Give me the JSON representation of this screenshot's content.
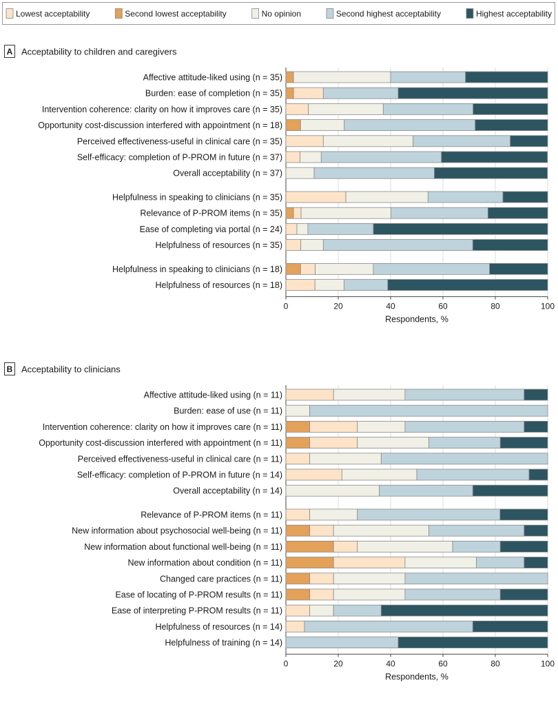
{
  "colors": {
    "lowest": "#fde3c8",
    "second_lowest": "#e3a15a",
    "no_opinion": "#f0f0e6",
    "second_highest": "#bed3dc",
    "highest": "#2d5461"
  },
  "legend": {
    "placement": "top",
    "items": [
      {
        "key": "lowest",
        "label": "Lowest acceptability"
      },
      {
        "key": "second_lowest",
        "label": "Second lowest acceptability"
      },
      {
        "key": "no_opinion",
        "label": "No opinion"
      },
      {
        "key": "second_highest",
        "label": "Second highest acceptability"
      },
      {
        "key": "highest",
        "label": "Highest acceptability"
      }
    ]
  },
  "chart_data": [
    {
      "type": "bar",
      "orientation": "horizontal-stacked",
      "panel_letter": "A",
      "title": "Acceptability to children and caregivers",
      "xlabel": "Respondents, %",
      "xlim": [
        0,
        100
      ],
      "xticks": [
        "0",
        "20",
        "40",
        "60",
        "80",
        "100"
      ],
      "grid": true,
      "segment_order": [
        "second_lowest",
        "lowest",
        "no_opinion",
        "second_highest",
        "highest"
      ],
      "rows": [
        {
          "group": 0,
          "label": "Affective attitude-liked using (n = 35)",
          "values": {
            "second_lowest": 2.9,
            "lowest": 0,
            "no_opinion": 37.1,
            "second_highest": 28.6,
            "highest": 31.4
          }
        },
        {
          "group": 0,
          "label": "Burden: ease of completion (n = 35)",
          "values": {
            "second_lowest": 2.9,
            "lowest": 11.4,
            "no_opinion": 0,
            "second_highest": 28.6,
            "highest": 57.1
          }
        },
        {
          "group": 0,
          "label": "Intervention coherence: clarity on how it improves care (n = 35)",
          "values": {
            "second_lowest": 0,
            "lowest": 8.6,
            "no_opinion": 28.6,
            "second_highest": 34.3,
            "highest": 28.6
          }
        },
        {
          "group": 0,
          "label": "Opportunity cost-discussion interfered with appointment (n = 18)",
          "values": {
            "second_lowest": 5.6,
            "lowest": 0,
            "no_opinion": 16.7,
            "second_highest": 50.0,
            "highest": 27.8
          }
        },
        {
          "group": 0,
          "label": "Perceived effectiveness-useful in clinical care (n = 35)",
          "values": {
            "second_lowest": 0,
            "lowest": 14.3,
            "no_opinion": 34.3,
            "second_highest": 37.1,
            "highest": 14.3
          }
        },
        {
          "group": 0,
          "label": "Self-efficacy: completion of P-PROM in future (n = 37)",
          "values": {
            "second_lowest": 0,
            "lowest": 5.4,
            "no_opinion": 8.1,
            "second_highest": 45.9,
            "highest": 40.5
          }
        },
        {
          "group": 0,
          "label": "Overall acceptability (n = 37)",
          "values": {
            "second_lowest": 0,
            "lowest": 0,
            "no_opinion": 10.8,
            "second_highest": 45.9,
            "highest": 43.2
          }
        },
        {
          "group": 1,
          "label": "Helpfulness in speaking to clinicians (n = 35)",
          "values": {
            "second_lowest": 0,
            "lowest": 22.9,
            "no_opinion": 31.4,
            "second_highest": 28.6,
            "highest": 17.1
          }
        },
        {
          "group": 1,
          "label": "Relevance of P-PROM items (n = 35)",
          "values": {
            "second_lowest": 2.9,
            "lowest": 2.9,
            "no_opinion": 34.3,
            "second_highest": 37.1,
            "highest": 22.9
          }
        },
        {
          "group": 1,
          "label": "Ease of completing via portal (n = 24)",
          "values": {
            "second_lowest": 0,
            "lowest": 4.2,
            "no_opinion": 4.2,
            "second_highest": 25.0,
            "highest": 66.7
          }
        },
        {
          "group": 1,
          "label": "Helpfulness of resources (n = 35)",
          "values": {
            "second_lowest": 0,
            "lowest": 5.7,
            "no_opinion": 8.6,
            "second_highest": 57.1,
            "highest": 28.6
          }
        },
        {
          "group": 2,
          "label": "Helpfulness in speaking to clinicians (n = 18)",
          "values": {
            "second_lowest": 5.6,
            "lowest": 5.6,
            "no_opinion": 22.2,
            "second_highest": 44.4,
            "highest": 22.2
          }
        },
        {
          "group": 2,
          "label": "Helpfulness of resources (n = 18)",
          "values": {
            "second_lowest": 0,
            "lowest": 11.1,
            "no_opinion": 11.1,
            "second_highest": 16.7,
            "highest": 61.1
          }
        }
      ]
    },
    {
      "type": "bar",
      "orientation": "horizontal-stacked",
      "panel_letter": "B",
      "title": "Acceptability to clinicians",
      "xlabel": "Respondents, %",
      "xlim": [
        0,
        100
      ],
      "xticks": [
        "0",
        "20",
        "40",
        "60",
        "80",
        "100"
      ],
      "grid": true,
      "segment_order": [
        "second_lowest",
        "lowest",
        "no_opinion",
        "second_highest",
        "highest"
      ],
      "rows": [
        {
          "group": 0,
          "label": "Affective attitude-liked using (n = 11)",
          "values": {
            "second_lowest": 0,
            "lowest": 18.2,
            "no_opinion": 27.3,
            "second_highest": 45.5,
            "highest": 9.1
          }
        },
        {
          "group": 0,
          "label": "Burden: ease of use (n = 11)",
          "values": {
            "second_lowest": 0,
            "lowest": 0,
            "no_opinion": 9.1,
            "second_highest": 90.9,
            "highest": 0
          }
        },
        {
          "group": 0,
          "label": "Intervention coherence: clarity on how it improves care (n = 11)",
          "values": {
            "second_lowest": 9.1,
            "lowest": 18.2,
            "no_opinion": 18.2,
            "second_highest": 45.5,
            "highest": 9.1
          }
        },
        {
          "group": 0,
          "label": "Opportunity cost-discussion interfered with appointment (n = 11)",
          "values": {
            "second_lowest": 9.1,
            "lowest": 18.2,
            "no_opinion": 27.3,
            "second_highest": 27.3,
            "highest": 18.2
          }
        },
        {
          "group": 0,
          "label": "Perceived effectiveness-useful in clinical care (n = 11)",
          "values": {
            "second_lowest": 0,
            "lowest": 9.1,
            "no_opinion": 27.3,
            "second_highest": 63.6,
            "highest": 0
          }
        },
        {
          "group": 0,
          "label": "Self-efficacy: completion of P-PROM in future (n = 14)",
          "values": {
            "second_lowest": 0,
            "lowest": 21.4,
            "no_opinion": 28.6,
            "second_highest": 42.9,
            "highest": 7.1
          }
        },
        {
          "group": 0,
          "label": "Overall acceptability (n = 14)",
          "values": {
            "second_lowest": 0,
            "lowest": 0,
            "no_opinion": 35.7,
            "second_highest": 35.7,
            "highest": 28.6
          }
        },
        {
          "group": 1,
          "label": "Relevance of P-PROM items (n = 11)",
          "values": {
            "second_lowest": 0,
            "lowest": 9.1,
            "no_opinion": 18.2,
            "second_highest": 54.5,
            "highest": 18.2
          }
        },
        {
          "group": 1,
          "label": "New information about psychosocial well-being (n = 11)",
          "values": {
            "second_lowest": 9.1,
            "lowest": 9.1,
            "no_opinion": 36.4,
            "second_highest": 36.4,
            "highest": 9.1
          }
        },
        {
          "group": 1,
          "label": "New information about functional well-being (n = 11)",
          "values": {
            "second_lowest": 18.2,
            "lowest": 9.1,
            "no_opinion": 36.4,
            "second_highest": 18.2,
            "highest": 18.2
          }
        },
        {
          "group": 1,
          "label": "New information about condition (n = 11)",
          "values": {
            "second_lowest": 18.2,
            "lowest": 27.3,
            "no_opinion": 27.3,
            "second_highest": 18.2,
            "highest": 9.1
          }
        },
        {
          "group": 1,
          "label": "Changed care practices (n = 11)",
          "values": {
            "second_lowest": 9.1,
            "lowest": 9.1,
            "no_opinion": 27.3,
            "second_highest": 54.5,
            "highest": 0
          }
        },
        {
          "group": 1,
          "label": "Ease of locating of P-PROM results (n = 11)",
          "values": {
            "second_lowest": 9.1,
            "lowest": 9.1,
            "no_opinion": 27.3,
            "second_highest": 36.4,
            "highest": 18.2
          }
        },
        {
          "group": 1,
          "label": "Ease of interpreting P-PROM results (n = 11)",
          "values": {
            "second_lowest": 0,
            "lowest": 9.1,
            "no_opinion": 9.1,
            "second_highest": 18.2,
            "highest": 63.6
          }
        },
        {
          "group": 1,
          "label": "Helpfulness of resources (n = 14)",
          "values": {
            "second_lowest": 0,
            "lowest": 7.1,
            "no_opinion": 0,
            "second_highest": 64.3,
            "highest": 28.6
          }
        },
        {
          "group": 1,
          "label": "Helpfulness of training (n = 14)",
          "values": {
            "second_lowest": 0,
            "lowest": 0,
            "no_opinion": 0,
            "second_highest": 42.9,
            "highest": 57.1
          }
        }
      ]
    }
  ]
}
